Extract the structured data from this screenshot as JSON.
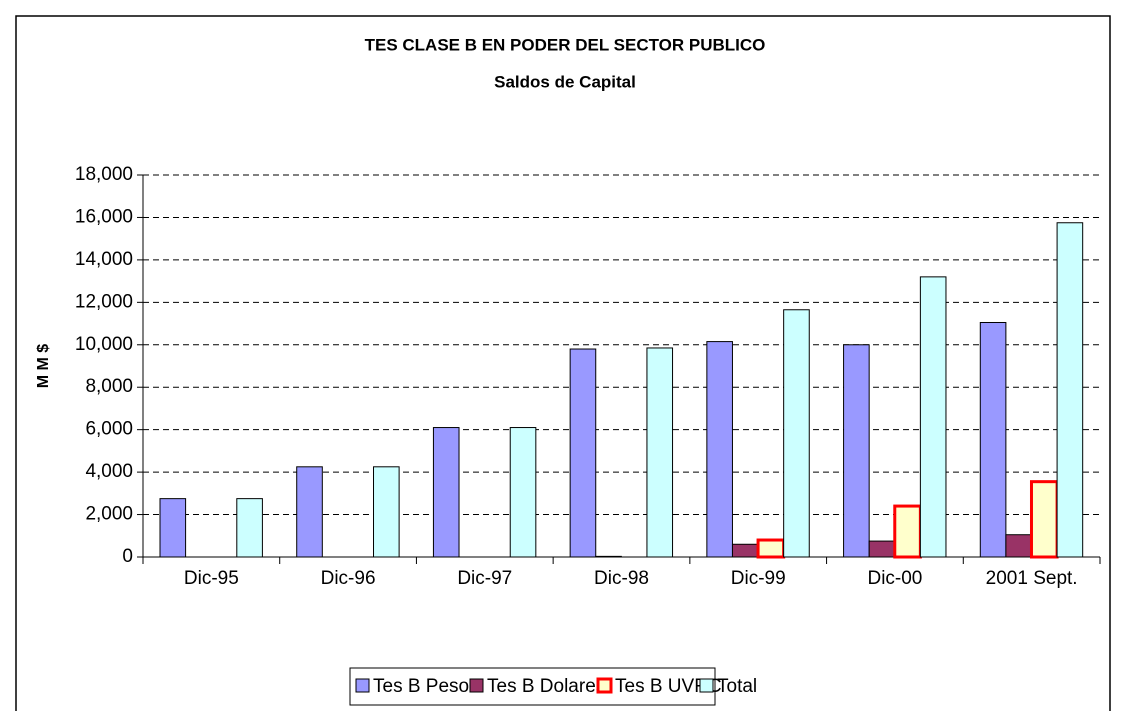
{
  "chart_data": {
    "type": "bar",
    "title": "TES CLASE B EN PODER DEL SECTOR PUBLICO",
    "subtitle": "Saldos de Capital",
    "y_label": "M M $",
    "categories": [
      "Dic-95",
      "Dic-96",
      "Dic-97",
      "Dic-98",
      "Dic-99",
      "Dic-00",
      "2001 Sept."
    ],
    "series": [
      {
        "name": "Tes B Pesos",
        "color": "#9999ff",
        "values": [
          2750,
          4250,
          6100,
          9800,
          10150,
          10000,
          11050
        ]
      },
      {
        "name": "Tes B Dolares",
        "color": "#993366",
        "values": [
          null,
          null,
          null,
          30,
          600,
          750,
          1050
        ]
      },
      {
        "name": "Tes B UVRC",
        "color": "#ffffcc",
        "edge": "#ff0000",
        "values": [
          null,
          null,
          null,
          null,
          800,
          2400,
          3550
        ]
      },
      {
        "name": "Total",
        "color": "#ccffff",
        "values": [
          2750,
          4250,
          6100,
          9850,
          11650,
          13200,
          15750
        ]
      }
    ],
    "ylim": [
      0,
      18000
    ],
    "yticks": [
      0,
      {
        "value": 2000,
        "label": "2,000"
      },
      {
        "value": 4000,
        "label": "4,000"
      },
      {
        "value": 6000,
        "label": "6,000"
      },
      {
        "value": 8000,
        "label": "8,000"
      },
      {
        "value": 10000,
        "label": "10,000"
      },
      {
        "value": 12000,
        "label": "12,000"
      },
      {
        "value": 14000,
        "label": "14,000"
      },
      {
        "value": 16000,
        "label": "16,000"
      },
      {
        "value": 18000,
        "label": "18,000"
      }
    ],
    "grid": true,
    "legend": "bottom"
  }
}
